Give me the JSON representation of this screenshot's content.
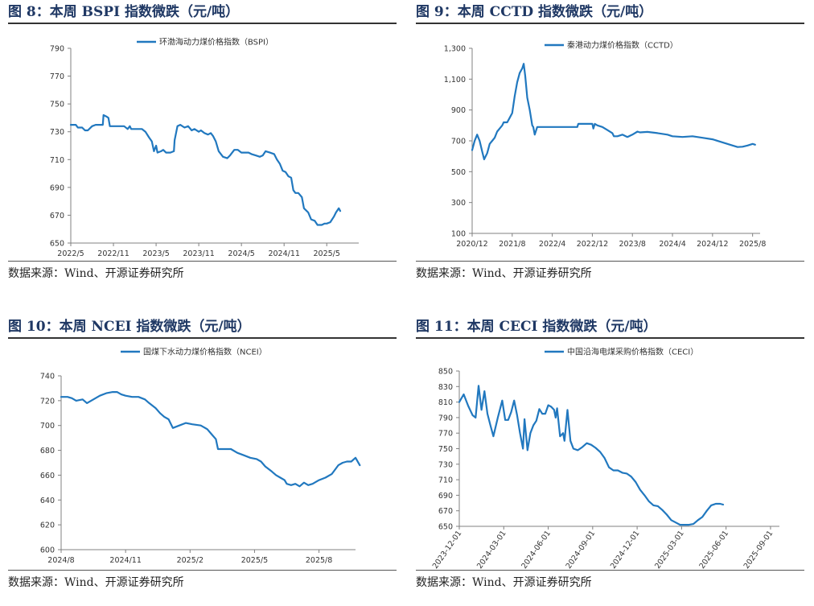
{
  "line_color": "#2178bf",
  "title_color": "#1f3864",
  "chart_data": [
    {
      "type": "line",
      "figure_title": "图 8：本周 BSPI 指数微跌（元/吨）",
      "source": "数据来源：Wind、开源证券研究所",
      "series": [
        {
          "name": "环渤海动力煤价格指数（BSPI）",
          "color": "#2178bf"
        }
      ],
      "yticks": [
        "790",
        "770",
        "750",
        "730",
        "710",
        "690",
        "670",
        "650"
      ],
      "ylim": [
        650,
        790
      ],
      "xticks": [
        "2022/5",
        "2022/11",
        "2023/5",
        "2023/11",
        "2024/5",
        "2024/11",
        "2025/5"
      ],
      "xtick_t": [
        0,
        6,
        12,
        18,
        24,
        30,
        36
      ],
      "xlim": [
        0,
        40.5
      ],
      "points": [
        [
          0,
          735
        ],
        [
          0.7,
          735
        ],
        [
          1,
          733
        ],
        [
          1.6,
          733
        ],
        [
          2,
          731
        ],
        [
          2.4,
          731
        ],
        [
          3,
          734
        ],
        [
          3.5,
          735
        ],
        [
          4,
          735
        ],
        [
          4.5,
          735
        ],
        [
          4.6,
          742
        ],
        [
          5,
          741
        ],
        [
          5.3,
          740
        ],
        [
          5.5,
          734
        ],
        [
          6,
          734
        ],
        [
          7,
          734
        ],
        [
          7.5,
          734
        ],
        [
          8,
          732
        ],
        [
          8.3,
          734
        ],
        [
          8.5,
          732
        ],
        [
          9,
          732
        ],
        [
          10,
          732
        ],
        [
          10.5,
          730
        ],
        [
          11,
          726
        ],
        [
          11.4,
          723
        ],
        [
          11.7,
          716
        ],
        [
          12,
          720
        ],
        [
          12.2,
          715
        ],
        [
          12.7,
          716
        ],
        [
          13,
          717
        ],
        [
          13.4,
          715
        ],
        [
          14,
          715
        ],
        [
          14.5,
          716
        ],
        [
          14.6,
          724
        ],
        [
          15,
          734
        ],
        [
          15.4,
          735
        ],
        [
          16,
          733
        ],
        [
          16.5,
          734
        ],
        [
          17,
          731
        ],
        [
          17.4,
          732
        ],
        [
          18,
          730
        ],
        [
          18.3,
          731
        ],
        [
          18.8,
          729
        ],
        [
          19.3,
          728
        ],
        [
          19.7,
          729
        ],
        [
          20,
          727
        ],
        [
          20.4,
          723
        ],
        [
          20.8,
          716
        ],
        [
          21.4,
          712
        ],
        [
          22,
          711
        ],
        [
          22.4,
          713
        ],
        [
          23,
          717
        ],
        [
          23.5,
          717
        ],
        [
          24,
          715
        ],
        [
          25,
          715
        ],
        [
          25.4,
          714
        ],
        [
          26,
          713
        ],
        [
          26.6,
          712
        ],
        [
          27,
          713
        ],
        [
          27.4,
          716
        ],
        [
          28,
          715
        ],
        [
          28.6,
          714
        ],
        [
          29,
          710
        ],
        [
          29.4,
          707
        ],
        [
          29.8,
          702
        ],
        [
          30.2,
          701
        ],
        [
          30.6,
          698
        ],
        [
          31,
          697
        ],
        [
          31.3,
          688
        ],
        [
          31.6,
          686
        ],
        [
          32,
          686
        ],
        [
          32.5,
          683
        ],
        [
          32.8,
          675
        ],
        [
          33.4,
          672
        ],
        [
          33.8,
          667
        ],
        [
          34.3,
          666
        ],
        [
          34.7,
          663
        ],
        [
          35.3,
          663
        ],
        [
          35.7,
          664
        ],
        [
          36,
          664
        ],
        [
          36.5,
          665
        ],
        [
          37,
          669
        ],
        [
          37.3,
          672
        ],
        [
          37.7,
          675
        ],
        [
          37.9,
          673
        ]
      ]
    },
    {
      "type": "line",
      "figure_title": "图 9：本周 CCTD 指数微跌（元/吨）",
      "source": "数据来源：Wind、开源证券研究所",
      "series": [
        {
          "name": "秦港动力煤价格指数（CCTD）",
          "color": "#2178bf"
        }
      ],
      "yticks": [
        "1,300",
        "1,100",
        "900",
        "700",
        "500",
        "300",
        "100"
      ],
      "ylim": [
        100,
        1300
      ],
      "xticks": [
        "2020/12",
        "2021/8",
        "2022/4",
        "2022/12",
        "2023/8",
        "2024/4",
        "2024/12",
        "2025/8"
      ],
      "xtick_t": [
        0,
        8,
        16,
        24,
        32,
        40,
        48,
        56
      ],
      "xlim": [
        0,
        57.5
      ],
      "points": [
        [
          0,
          640
        ],
        [
          0.5,
          700
        ],
        [
          1,
          740
        ],
        [
          1.5,
          700
        ],
        [
          2,
          630
        ],
        [
          2.4,
          580
        ],
        [
          3,
          620
        ],
        [
          3.5,
          680
        ],
        [
          4,
          700
        ],
        [
          4.5,
          720
        ],
        [
          5,
          760
        ],
        [
          5.5,
          780
        ],
        [
          6,
          800
        ],
        [
          6.3,
          820
        ],
        [
          7,
          820
        ],
        [
          7.5,
          850
        ],
        [
          8,
          880
        ],
        [
          8.5,
          990
        ],
        [
          9,
          1080
        ],
        [
          9.5,
          1140
        ],
        [
          10,
          1170
        ],
        [
          10.3,
          1200
        ],
        [
          10.6,
          1120
        ],
        [
          11,
          980
        ],
        [
          11.5,
          900
        ],
        [
          12,
          800
        ],
        [
          12.2,
          790
        ],
        [
          12.5,
          740
        ],
        [
          13,
          790
        ],
        [
          14,
          790
        ],
        [
          20,
          790
        ],
        [
          21,
          790
        ],
        [
          21.2,
          810
        ],
        [
          24,
          810
        ],
        [
          24.2,
          780
        ],
        [
          24.5,
          810
        ],
        [
          25,
          800
        ],
        [
          26,
          790
        ],
        [
          27,
          770
        ],
        [
          28,
          750
        ],
        [
          28.3,
          730
        ],
        [
          29,
          730
        ],
        [
          30,
          740
        ],
        [
          31,
          725
        ],
        [
          32,
          740
        ],
        [
          32.5,
          750
        ],
        [
          33,
          760
        ],
        [
          33.5,
          755
        ],
        [
          35,
          758
        ],
        [
          37,
          750
        ],
        [
          39,
          740
        ],
        [
          40,
          730
        ],
        [
          42,
          725
        ],
        [
          44,
          730
        ],
        [
          46,
          720
        ],
        [
          48,
          710
        ],
        [
          50,
          690
        ],
        [
          52,
          670
        ],
        [
          53,
          660
        ],
        [
          54,
          662
        ],
        [
          55,
          670
        ],
        [
          56,
          680
        ],
        [
          56.5,
          675
        ]
      ]
    },
    {
      "type": "line",
      "figure_title": "图 10：本周 NCEI 指数微跌（元/吨）",
      "source": "数据来源：Wind、开源证券研究所",
      "series": [
        {
          "name": "国煤下水动力煤价格指数（NCEI）",
          "color": "#2178bf"
        }
      ],
      "yticks": [
        "740",
        "720",
        "700",
        "680",
        "660",
        "640",
        "620",
        "600"
      ],
      "ylim": [
        600,
        740
      ],
      "xticks": [
        "2024/8",
        "2024/11",
        "2025/2",
        "2025/5",
        "2025/8"
      ],
      "xtick_t": [
        0,
        3,
        6,
        9,
        12
      ],
      "xlim": [
        0,
        13.7
      ],
      "points": [
        [
          0,
          723
        ],
        [
          0.3,
          723
        ],
        [
          0.5,
          722
        ],
        [
          0.7,
          720
        ],
        [
          1,
          721
        ],
        [
          1.2,
          718
        ],
        [
          1.5,
          721
        ],
        [
          1.8,
          724
        ],
        [
          2.1,
          726
        ],
        [
          2.4,
          727
        ],
        [
          2.6,
          727
        ],
        [
          2.8,
          725
        ],
        [
          3,
          724
        ],
        [
          3.3,
          723
        ],
        [
          3.6,
          723
        ],
        [
          3.9,
          721
        ],
        [
          4.1,
          718
        ],
        [
          4.4,
          714
        ],
        [
          4.6,
          710
        ],
        [
          4.8,
          707
        ],
        [
          5,
          705
        ],
        [
          5.2,
          698
        ],
        [
          5.5,
          700
        ],
        [
          5.8,
          702
        ],
        [
          6.1,
          701
        ],
        [
          6.5,
          700
        ],
        [
          6.8,
          697
        ],
        [
          7,
          693
        ],
        [
          7.2,
          689
        ],
        [
          7.3,
          681
        ],
        [
          7.6,
          681
        ],
        [
          7.9,
          681
        ],
        [
          8.2,
          678
        ],
        [
          8.5,
          676
        ],
        [
          8.8,
          674
        ],
        [
          9.1,
          673
        ],
        [
          9.3,
          671
        ],
        [
          9.5,
          667
        ],
        [
          9.8,
          663
        ],
        [
          10,
          660
        ],
        [
          10.2,
          658
        ],
        [
          10.4,
          656
        ],
        [
          10.5,
          653
        ],
        [
          10.7,
          652
        ],
        [
          10.9,
          653
        ],
        [
          11.1,
          651
        ],
        [
          11.3,
          654
        ],
        [
          11.5,
          652
        ],
        [
          11.7,
          653
        ],
        [
          12,
          656
        ],
        [
          12.3,
          658
        ],
        [
          12.6,
          661
        ],
        [
          12.9,
          668
        ],
        [
          13.1,
          670
        ],
        [
          13.3,
          671
        ],
        [
          13.5,
          671
        ],
        [
          13.7,
          674
        ],
        [
          13.9,
          668
        ]
      ]
    },
    {
      "type": "line",
      "figure_title": "图 11：本周 CECI 指数微跌（元/吨）",
      "source": "数据来源：Wind、开源证券研究所",
      "series": [
        {
          "name": "中国沿海电煤采购价格指数（CECI）",
          "color": "#2178bf"
        }
      ],
      "yticks": [
        "850",
        "830",
        "810",
        "790",
        "770",
        "750",
        "730",
        "710",
        "690",
        "670",
        "650"
      ],
      "ylim": [
        650,
        850
      ],
      "xticks": [
        "2023-12-01",
        "2024-03-01",
        "2024-06-01",
        "2024-09-01",
        "2024-12-01",
        "2025-03-01",
        "2025-06-01",
        "2025-09-01"
      ],
      "xtick_t": [
        0,
        3,
        6,
        9,
        12,
        15,
        18,
        21
      ],
      "xlim": [
        0,
        21.6
      ],
      "points": [
        [
          0,
          810
        ],
        [
          0.3,
          820
        ],
        [
          0.6,
          805
        ],
        [
          0.9,
          793
        ],
        [
          1.1,
          790
        ],
        [
          1.3,
          831
        ],
        [
          1.5,
          800
        ],
        [
          1.7,
          824
        ],
        [
          1.9,
          795
        ],
        [
          2.1,
          780
        ],
        [
          2.3,
          766
        ],
        [
          2.6,
          790
        ],
        [
          2.9,
          812
        ],
        [
          3.1,
          787
        ],
        [
          3.3,
          787
        ],
        [
          3.5,
          797
        ],
        [
          3.7,
          812
        ],
        [
          3.9,
          793
        ],
        [
          4.1,
          770
        ],
        [
          4.3,
          750
        ],
        [
          4.4,
          788
        ],
        [
          4.6,
          748
        ],
        [
          4.8,
          770
        ],
        [
          5,
          780
        ],
        [
          5.2,
          786
        ],
        [
          5.4,
          801
        ],
        [
          5.6,
          795
        ],
        [
          5.8,
          795
        ],
        [
          6,
          806
        ],
        [
          6.2,
          804
        ],
        [
          6.4,
          800
        ],
        [
          6.5,
          790
        ],
        [
          6.6,
          802
        ],
        [
          6.8,
          766
        ],
        [
          7,
          770
        ],
        [
          7.1,
          760
        ],
        [
          7.3,
          800
        ],
        [
          7.5,
          760
        ],
        [
          7.7,
          750
        ],
        [
          8,
          748
        ],
        [
          8.3,
          752
        ],
        [
          8.6,
          757
        ],
        [
          8.9,
          755
        ],
        [
          9.2,
          751
        ],
        [
          9.5,
          746
        ],
        [
          9.8,
          738
        ],
        [
          10.1,
          726
        ],
        [
          10.4,
          722
        ],
        [
          10.7,
          722
        ],
        [
          11,
          719
        ],
        [
          11.3,
          718
        ],
        [
          11.6,
          714
        ],
        [
          11.9,
          707
        ],
        [
          12.2,
          697
        ],
        [
          12.5,
          690
        ],
        [
          12.8,
          682
        ],
        [
          13.1,
          677
        ],
        [
          13.4,
          676
        ],
        [
          13.7,
          671
        ],
        [
          14,
          665
        ],
        [
          14.3,
          658
        ],
        [
          14.6,
          655
        ],
        [
          14.9,
          652
        ],
        [
          15.2,
          652
        ],
        [
          15.5,
          652
        ],
        [
          15.8,
          653
        ],
        [
          16.1,
          658
        ],
        [
          16.4,
          662
        ],
        [
          16.7,
          670
        ],
        [
          17,
          677
        ],
        [
          17.3,
          679
        ],
        [
          17.6,
          679
        ],
        [
          17.8,
          678
        ]
      ]
    }
  ]
}
